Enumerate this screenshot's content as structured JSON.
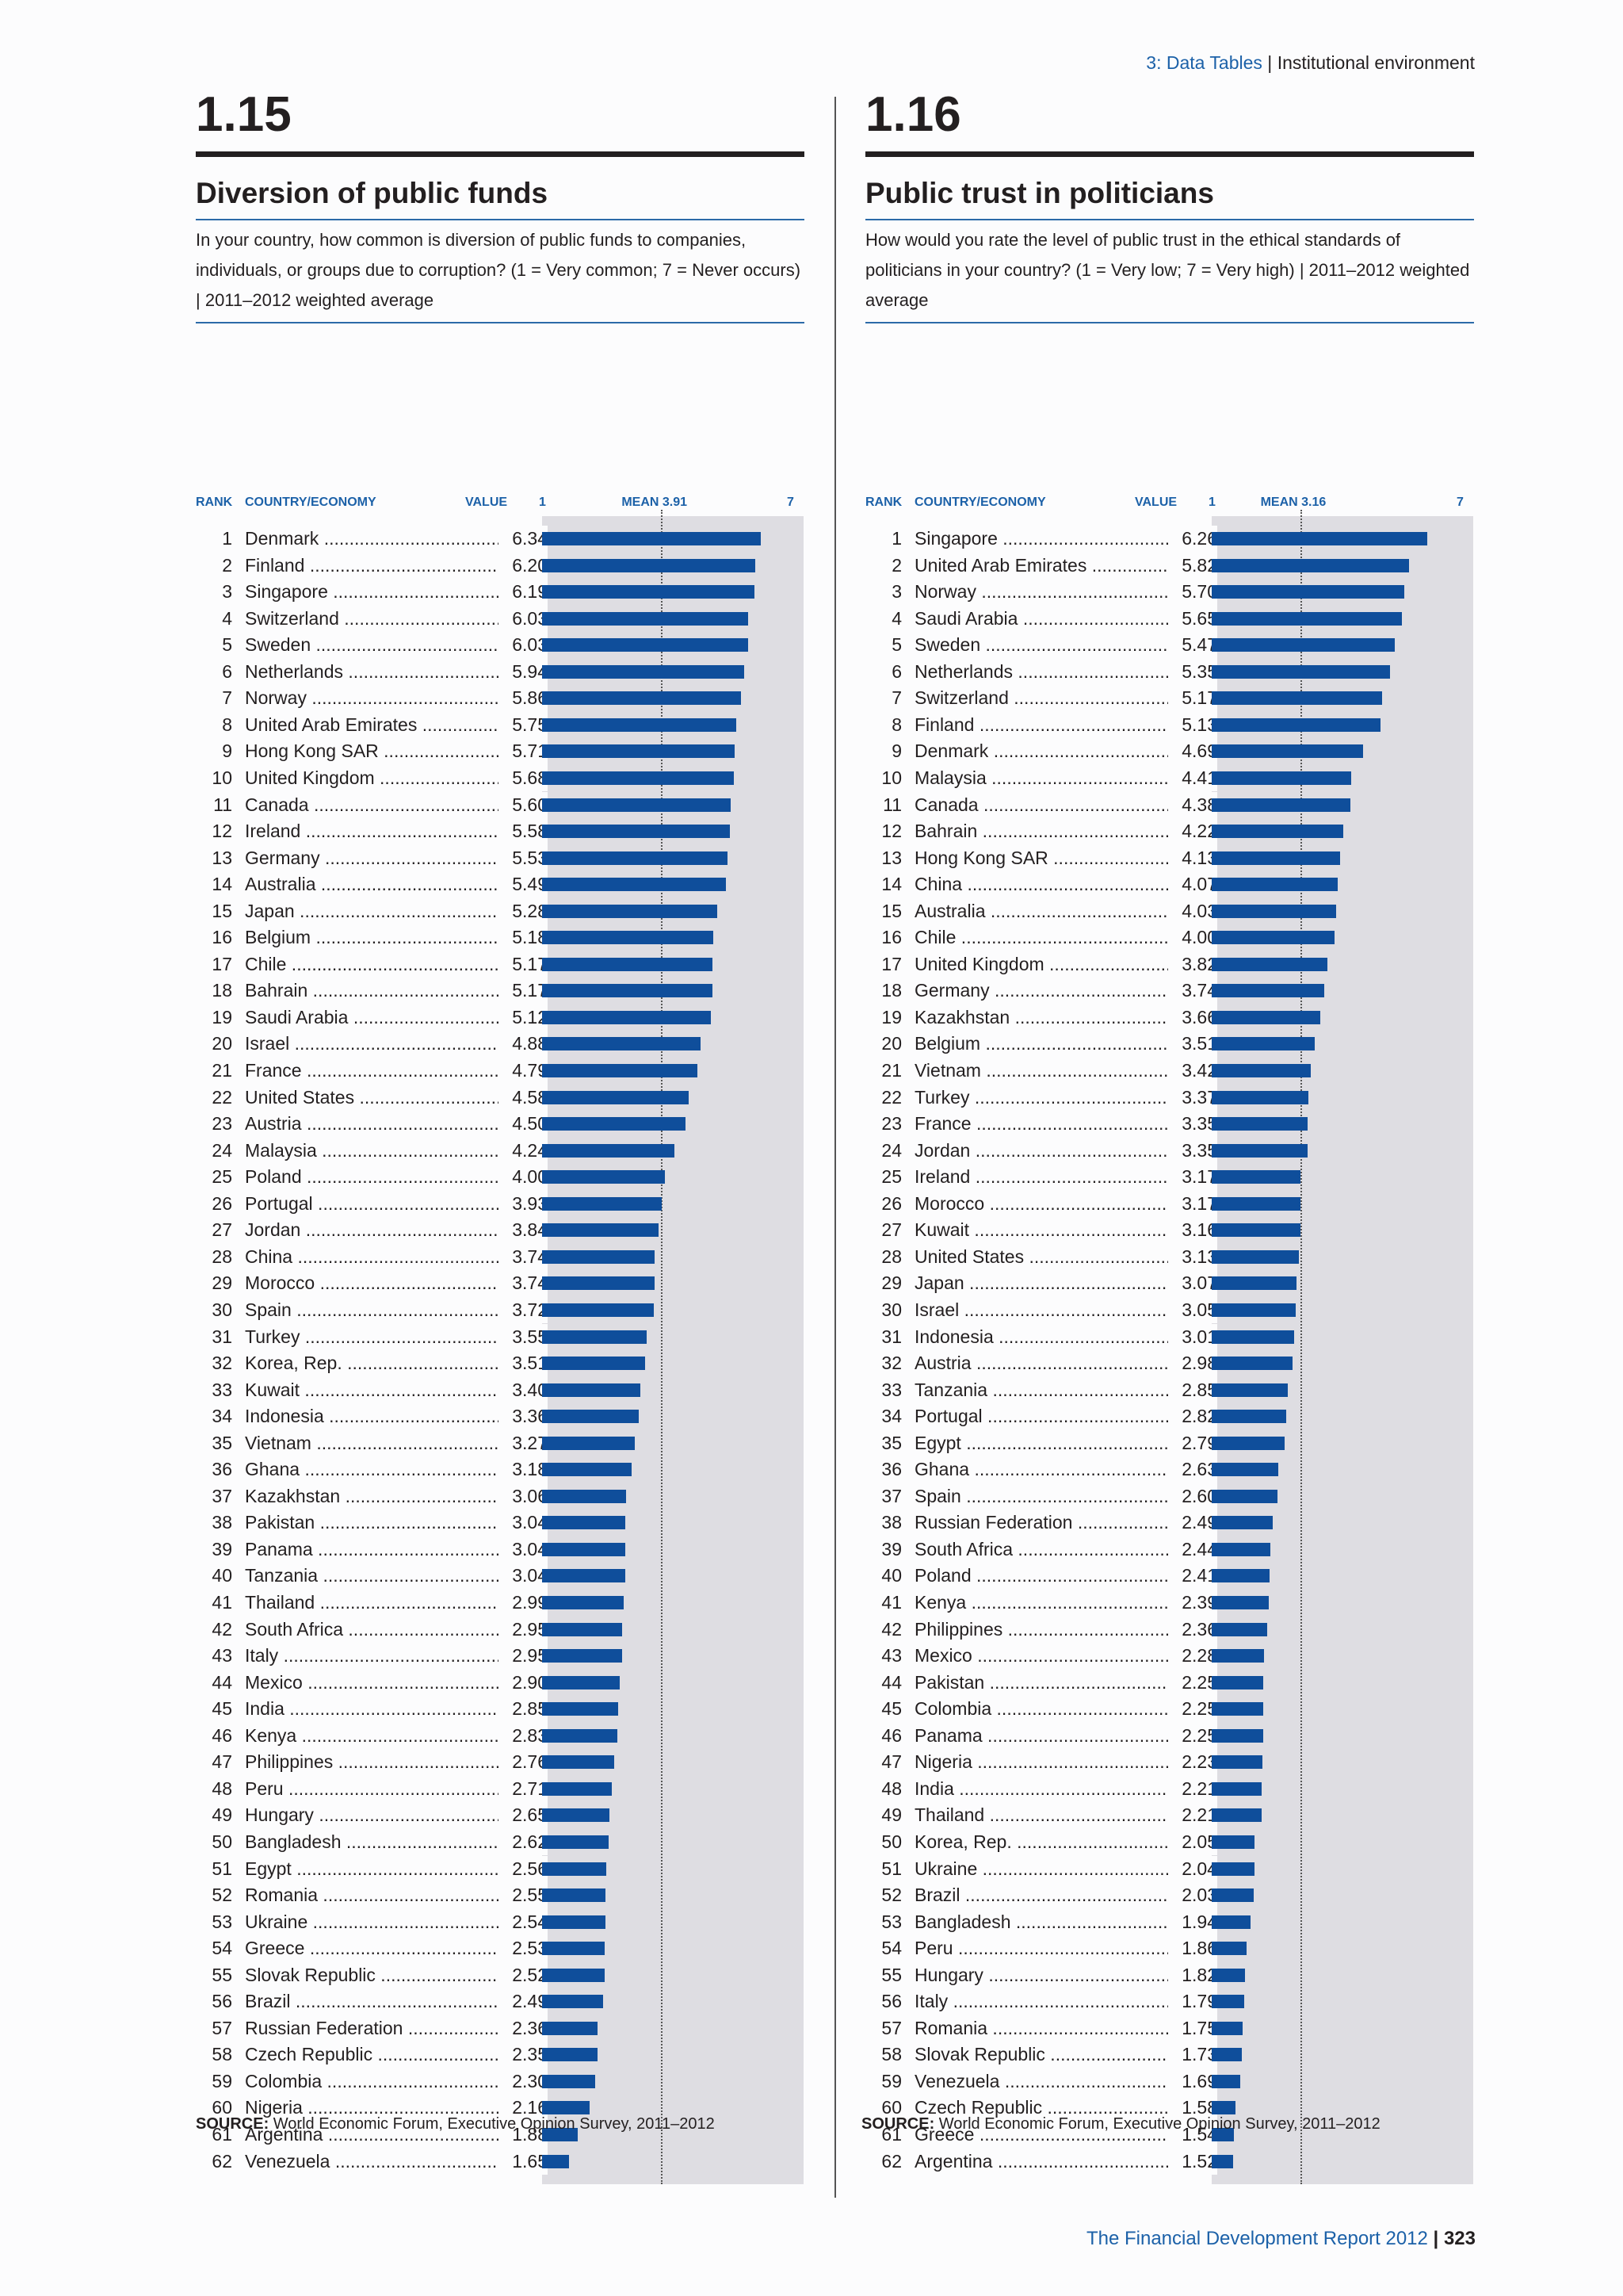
{
  "header": {
    "section": "3: Data Tables",
    "separator": " | ",
    "topic": "Institutional environment"
  },
  "left": {
    "number": "1.15",
    "title": "Diversion of public funds",
    "description": "In your country, how common is diversion of public funds to companies, individuals, or groups due to corruption? (1 = Very common; 7 = Never occurs) | 2011–2012 weighted average",
    "col_rank": "RANK",
    "col_country": "COUNTRY/ECONOMY",
    "col_value": "VALUE",
    "scale_min": "1",
    "mean_label": "MEAN 3.91",
    "scale_max": "7",
    "source_label": "SOURCE:",
    "source_text": " World Economic Forum, Executive Opinion Survey, 2011–2012"
  },
  "right": {
    "number": "1.16",
    "title": "Public trust in politicians",
    "description": "How would you rate the level of public trust in the ethical standards of politicians in your country? (1 = Very low; 7 = Very high) | 2011–2012 weighted average",
    "col_rank": "RANK",
    "col_country": "COUNTRY/ECONOMY",
    "col_value": "VALUE",
    "scale_min": "1",
    "mean_label": "MEAN 3.16",
    "scale_max": "7",
    "source_label": "SOURCE:",
    "source_text": " World Economic Forum, Executive Opinion Survey, 2011–2012"
  },
  "footer": {
    "title": "The Financial Development Report 2012",
    "separator": " | ",
    "page": "323"
  },
  "chart_data": [
    {
      "type": "bar",
      "xlim": [
        1,
        7
      ],
      "mean": 3.91,
      "ranks": [
        1,
        2,
        3,
        4,
        5,
        6,
        7,
        8,
        9,
        10,
        11,
        12,
        13,
        14,
        15,
        16,
        17,
        18,
        19,
        20,
        21,
        22,
        23,
        24,
        25,
        26,
        27,
        28,
        29,
        30,
        31,
        32,
        33,
        34,
        35,
        36,
        37,
        38,
        39,
        40,
        41,
        42,
        43,
        44,
        45,
        46,
        47,
        48,
        49,
        50,
        51,
        52,
        53,
        54,
        55,
        56,
        57,
        58,
        59,
        60,
        61,
        62
      ],
      "categories": [
        "Denmark",
        "Finland",
        "Singapore",
        "Switzerland",
        "Sweden",
        "Netherlands",
        "Norway",
        "United Arab Emirates",
        "Hong Kong SAR",
        "United Kingdom",
        "Canada",
        "Ireland",
        "Germany",
        "Australia",
        "Japan",
        "Belgium",
        "Chile",
        "Bahrain",
        "Saudi Arabia",
        "Israel",
        "France",
        "United States",
        "Austria",
        "Malaysia",
        "Poland",
        "Portugal",
        "Jordan",
        "China",
        "Morocco",
        "Spain",
        "Turkey",
        "Korea, Rep.",
        "Kuwait",
        "Indonesia",
        "Vietnam",
        "Ghana",
        "Kazakhstan",
        "Pakistan",
        "Panama",
        "Tanzania",
        "Thailand",
        "South Africa",
        "Italy",
        "Mexico",
        "India",
        "Kenya",
        "Philippines",
        "Peru",
        "Hungary",
        "Bangladesh",
        "Egypt",
        "Romania",
        "Ukraine",
        "Greece",
        "Slovak Republic",
        "Brazil",
        "Russian Federation",
        "Czech Republic",
        "Colombia",
        "Nigeria",
        "Argentina",
        "Venezuela"
      ],
      "values": [
        "6.34",
        "6.20",
        "6.19",
        "6.03",
        "6.03",
        "5.94",
        "5.86",
        "5.75",
        "5.71",
        "5.68",
        "5.60",
        "5.58",
        "5.53",
        "5.49",
        "5.28",
        "5.18",
        "5.17",
        "5.17",
        "5.12",
        "4.88",
        "4.79",
        "4.58",
        "4.50",
        "4.24",
        "4.00",
        "3.93",
        "3.84",
        "3.74",
        "3.74",
        "3.72",
        "3.55",
        "3.51",
        "3.40",
        "3.36",
        "3.27",
        "3.18",
        "3.06",
        "3.04",
        "3.04",
        "3.04",
        "2.99",
        "2.95",
        "2.95",
        "2.90",
        "2.85",
        "2.83",
        "2.76",
        "2.71",
        "2.65",
        "2.62",
        "2.56",
        "2.55",
        "2.54",
        "2.53",
        "2.52",
        "2.49",
        "2.36",
        "2.35",
        "2.30",
        "2.16",
        "1.88",
        "1.65"
      ]
    },
    {
      "type": "bar",
      "xlim": [
        1,
        7
      ],
      "mean": 3.16,
      "ranks": [
        1,
        2,
        3,
        4,
        5,
        6,
        7,
        8,
        9,
        10,
        11,
        12,
        13,
        14,
        15,
        16,
        17,
        18,
        19,
        20,
        21,
        22,
        23,
        24,
        25,
        26,
        27,
        28,
        29,
        30,
        31,
        32,
        33,
        34,
        35,
        36,
        37,
        38,
        39,
        40,
        41,
        42,
        43,
        44,
        45,
        46,
        47,
        48,
        49,
        50,
        51,
        52,
        53,
        54,
        55,
        56,
        57,
        58,
        59,
        60,
        61,
        62
      ],
      "categories": [
        "Singapore",
        "United Arab Emirates",
        "Norway",
        "Saudi Arabia",
        "Sweden",
        "Netherlands",
        "Switzerland",
        "Finland",
        "Denmark",
        "Malaysia",
        "Canada",
        "Bahrain",
        "Hong Kong SAR",
        "China",
        "Australia",
        "Chile",
        "United Kingdom",
        "Germany",
        "Kazakhstan",
        "Belgium",
        "Vietnam",
        "Turkey",
        "France",
        "Jordan",
        "Ireland",
        "Morocco",
        "Kuwait",
        "United States",
        "Japan",
        "Israel",
        "Indonesia",
        "Austria",
        "Tanzania",
        "Portugal",
        "Egypt",
        "Ghana",
        "Spain",
        "Russian Federation",
        "South Africa",
        "Poland",
        "Kenya",
        "Philippines",
        "Mexico",
        "Pakistan",
        "Colombia",
        "Panama",
        "Nigeria",
        "India",
        "Thailand",
        "Korea, Rep.",
        "Ukraine",
        "Brazil",
        "Bangladesh",
        "Peru",
        "Hungary",
        "Italy",
        "Romania",
        "Slovak Republic",
        "Venezuela",
        "Czech Republic",
        "Greece",
        "Argentina"
      ],
      "values": [
        "6.26",
        "5.82",
        "5.70",
        "5.65",
        "5.47",
        "5.35",
        "5.17",
        "5.13",
        "4.69",
        "4.41",
        "4.38",
        "4.22",
        "4.13",
        "4.07",
        "4.03",
        "4.00",
        "3.82",
        "3.74",
        "3.66",
        "3.51",
        "3.42",
        "3.37",
        "3.35",
        "3.35",
        "3.17",
        "3.17",
        "3.16",
        "3.13",
        "3.07",
        "3.05",
        "3.01",
        "2.98",
        "2.85",
        "2.82",
        "2.79",
        "2.63",
        "2.60",
        "2.49",
        "2.44",
        "2.41",
        "2.39",
        "2.36",
        "2.28",
        "2.25",
        "2.25",
        "2.25",
        "2.23",
        "2.21",
        "2.21",
        "2.05",
        "2.04",
        "2.03",
        "1.94",
        "1.86",
        "1.82",
        "1.79",
        "1.75",
        "1.73",
        "1.69",
        "1.58",
        "1.54",
        "1.52"
      ]
    }
  ]
}
